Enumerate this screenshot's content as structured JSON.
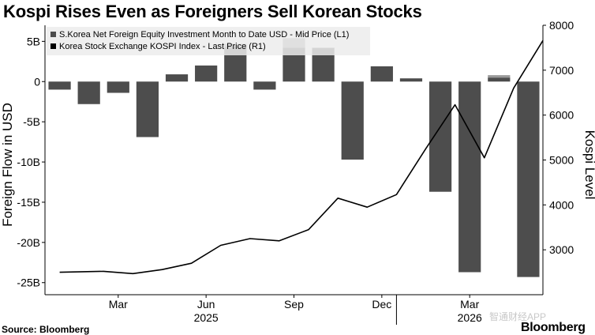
{
  "title": "Kospi Rises Even as Foreigners Sell Korean Stocks",
  "source": "Source: Bloomberg",
  "brand": "Bloomberg",
  "watermark": "智通财经APP",
  "chart_data": {
    "type": "bar",
    "x": [
      "2025-01",
      "2025-02",
      "2025-03",
      "2025-04",
      "2025-05",
      "2025-06",
      "2025-07",
      "2025-08",
      "2025-09",
      "2025-10",
      "2025-11",
      "2025-12",
      "2026-01",
      "2026-02",
      "2026-03",
      "2026-04",
      "2026-05"
    ],
    "x_tick_labels": [
      "Mar",
      "Jun",
      "Sep",
      "Dec",
      "Mar"
    ],
    "x_year_labels": [
      "2025",
      "2026"
    ],
    "series": [
      {
        "name": "S.Korea Net Foreign Equity Investment Month to Date USD - Mid Price (L1)",
        "type": "bar",
        "axis": "left",
        "color": "#4d4d4d",
        "values": [
          -1.0,
          -2.8,
          -1.4,
          -6.9,
          0.9,
          2.0,
          4.3,
          -1.0,
          4.2,
          4.2,
          -9.7,
          1.9,
          0.4,
          -13.7,
          -23.7,
          0.5,
          -24.3
        ],
        "overlay_values": [
          0,
          0,
          0,
          0,
          0,
          0,
          0.4,
          0,
          1.2,
          0,
          0,
          0,
          0,
          0,
          0,
          0.3,
          0
        ],
        "overlay_color": "#9a9a9a"
      },
      {
        "name": "Korea Stock Exchange KOSPI Index - Last Price (R1)",
        "type": "line",
        "axis": "right",
        "color": "#000000",
        "x": [
          0.0,
          1.5,
          2.5,
          3.5,
          4.5,
          5.5,
          6.5,
          7.5,
          8.5,
          9.5,
          10.5,
          11.5,
          12.5,
          13.5,
          14.5,
          15.5,
          16.5
        ],
        "values": [
          2500,
          2520,
          2470,
          2560,
          2700,
          3100,
          3250,
          3200,
          3450,
          4150,
          3950,
          4230,
          5250,
          6230,
          5050,
          6600,
          7660
        ]
      }
    ],
    "left_axis": {
      "label": "Foreign Flow in USD",
      "ylim": [
        -26.5,
        7.0
      ],
      "ticks": [
        "5B",
        "0",
        "-5B",
        "-10B",
        "-15B",
        "-20B",
        "-25B"
      ],
      "tick_values": [
        5,
        0,
        -5,
        -10,
        -15,
        -20,
        -25
      ]
    },
    "right_axis": {
      "label": "Kospi Level",
      "ylim": [
        2000,
        8000
      ],
      "ticks": [
        "8000",
        "7000",
        "6000",
        "5000",
        "4000",
        "3000"
      ],
      "tick_values": [
        8000,
        7000,
        6000,
        5000,
        4000,
        3000
      ]
    },
    "legend": "top-left",
    "grid": false
  }
}
